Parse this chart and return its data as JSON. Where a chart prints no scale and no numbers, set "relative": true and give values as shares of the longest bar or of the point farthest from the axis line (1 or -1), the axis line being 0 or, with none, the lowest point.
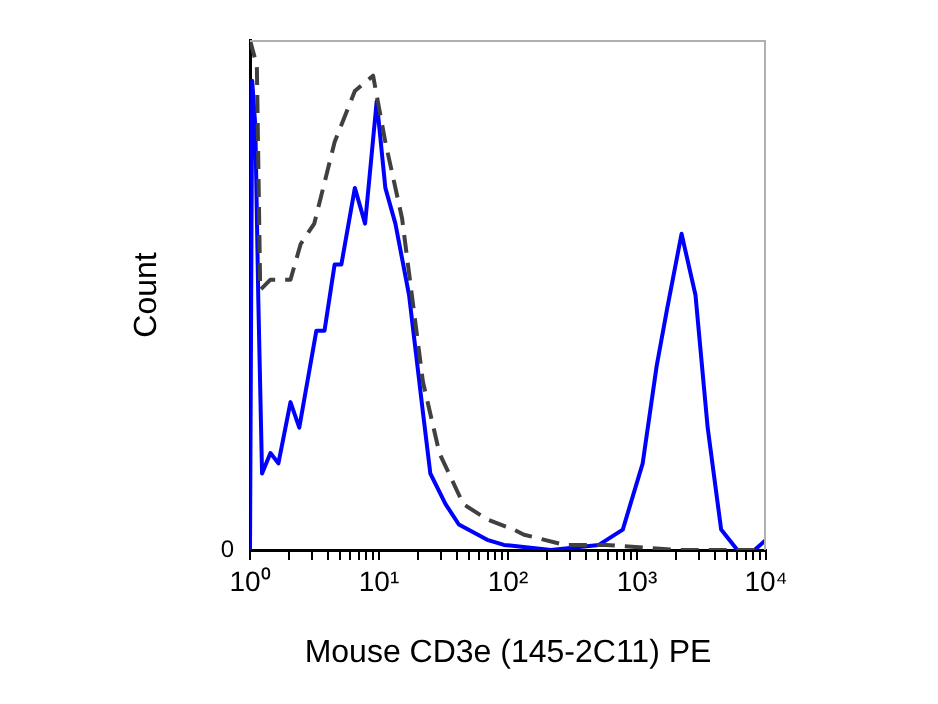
{
  "chart_data": {
    "type": "line",
    "xlabel": "Mouse CD3e (145-2C11) PE",
    "ylabel": "Count",
    "relative": true,
    "log": "x",
    "xlim": [
      1,
      10000
    ],
    "xticks": [
      {
        "value": 1,
        "label": "10⁰"
      },
      {
        "value": 2,
        "label": null
      },
      {
        "value": 3,
        "label": null
      },
      {
        "value": 4,
        "label": null
      },
      {
        "value": 5,
        "label": null
      },
      {
        "value": 6,
        "label": null
      },
      {
        "value": 7,
        "label": null
      },
      {
        "value": 8,
        "label": null
      },
      {
        "value": 9,
        "label": null
      },
      {
        "value": 10,
        "label": "10¹"
      },
      {
        "value": 20,
        "label": null
      },
      {
        "value": 30,
        "label": null
      },
      {
        "value": 40,
        "label": null
      },
      {
        "value": 50,
        "label": null
      },
      {
        "value": 60,
        "label": null
      },
      {
        "value": 70,
        "label": null
      },
      {
        "value": 80,
        "label": null
      },
      {
        "value": 90,
        "label": null
      },
      {
        "value": 100,
        "label": "10²"
      },
      {
        "value": 200,
        "label": null
      },
      {
        "value": 300,
        "label": null
      },
      {
        "value": 400,
        "label": null
      },
      {
        "value": 500,
        "label": null
      },
      {
        "value": 600,
        "label": null
      },
      {
        "value": 700,
        "label": null
      },
      {
        "value": 800,
        "label": null
      },
      {
        "value": 900,
        "label": null
      },
      {
        "value": 1000,
        "label": "10³"
      },
      {
        "value": 2000,
        "label": null
      },
      {
        "value": 3000,
        "label": null
      },
      {
        "value": 4000,
        "label": null
      },
      {
        "value": 5000,
        "label": null
      },
      {
        "value": 6000,
        "label": null
      },
      {
        "value": 7000,
        "label": null
      },
      {
        "value": 8000,
        "label": null
      },
      {
        "value": 9000,
        "label": null
      },
      {
        "value": 10000,
        "label": "10⁴"
      }
    ],
    "annotations": [
      "0"
    ],
    "grid": false,
    "legend": false,
    "marker": "none",
    "series": [
      {
        "color": "#404040",
        "line_style": "dashed",
        "x": [
          1,
          1.13,
          1.2,
          1.44,
          2.06,
          2.47,
          3.15,
          4.53,
          6.5,
          9,
          11.2,
          15.1,
          21.9,
          29.4,
          45,
          69,
          111,
          133,
          276,
          570,
          2150,
          4250,
          10000
        ],
        "values": [
          1,
          0.95,
          0.51,
          0.53,
          0.53,
          0.6,
          0.64,
          0.8,
          0.9,
          0.93,
          0.8,
          0.65,
          0.33,
          0.19,
          0.09,
          0.06,
          0.04,
          0.03,
          0.01,
          0.01,
          0,
          0,
          0
        ]
      },
      {
        "color": "#0000ff",
        "line_style": "solid",
        "x": [
          1,
          1.04,
          1.1,
          1.16,
          1.24,
          1.44,
          1.66,
          2.06,
          2.41,
          3.27,
          3.78,
          4.53,
          5.11,
          6.5,
          7.8,
          9.6,
          11.2,
          13.4,
          17.1,
          21.9,
          25,
          32.8,
          41.6,
          69,
          93,
          215,
          506,
          776,
          1107,
          1419,
          1703,
          2215,
          2840,
          3530,
          4490,
          6000,
          8150,
          10000
        ],
        "values": [
          0,
          0.92,
          0.83,
          0.49,
          0.15,
          0.19,
          0.17,
          0.29,
          0.24,
          0.43,
          0.43,
          0.56,
          0.56,
          0.71,
          0.64,
          0.88,
          0.71,
          0.64,
          0.5,
          0.27,
          0.15,
          0.09,
          0.05,
          0.02,
          0.01,
          0,
          0.01,
          0.04,
          0.17,
          0.36,
          0.47,
          0.62,
          0.5,
          0.24,
          0.04,
          0,
          0,
          0.02
        ]
      }
    ]
  }
}
